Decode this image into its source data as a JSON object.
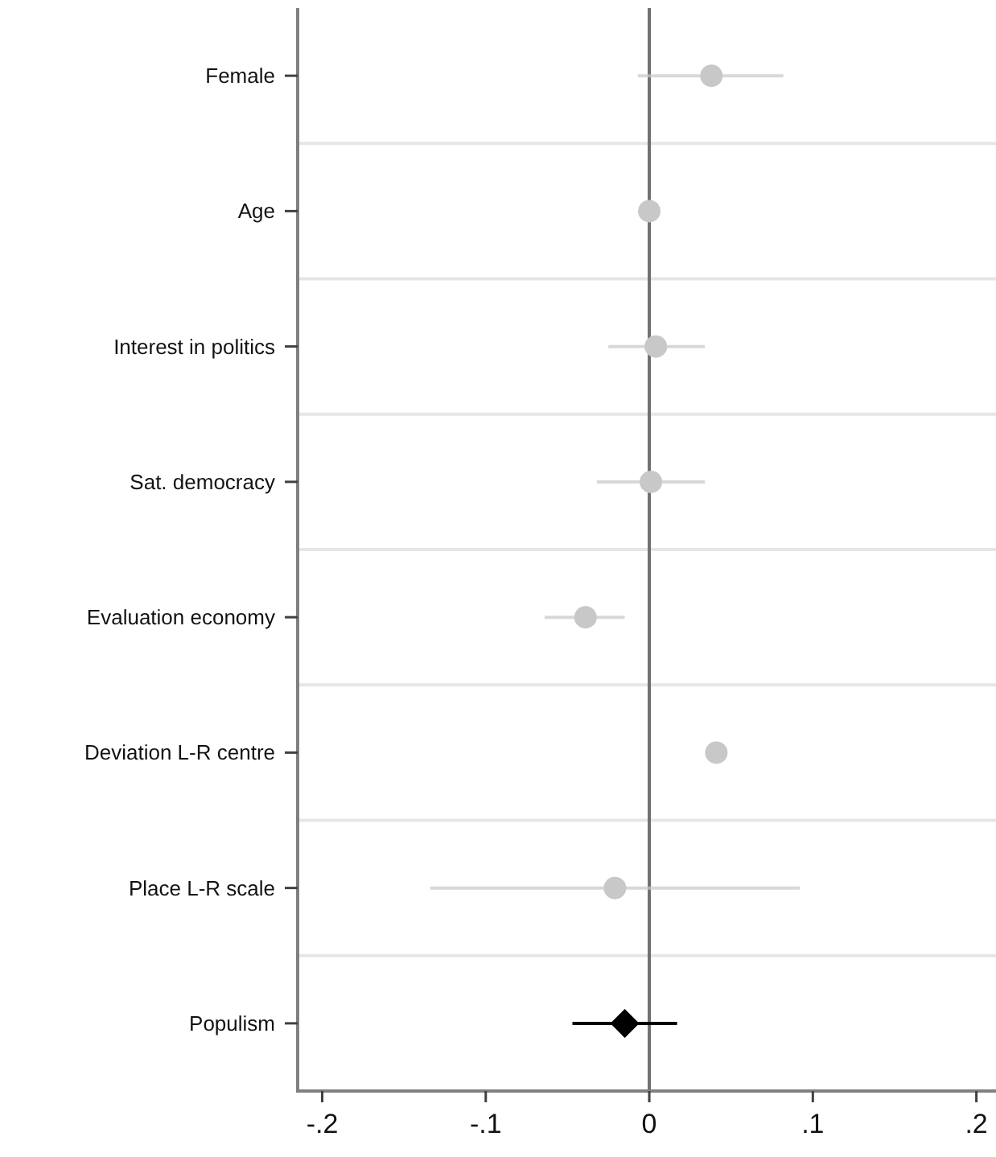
{
  "chart_data": {
    "type": "scatter",
    "orientation": "horizontal",
    "categories": [
      "Female",
      "Age",
      "Interest in politics",
      "Sat. democracy",
      "Evaluation economy",
      "Deviation L-R centre",
      "Place L-R scale",
      "Populism"
    ],
    "series": [
      {
        "color": "#c8c8c8",
        "marker": "circle",
        "values": [
          0.038,
          0.0,
          0.004,
          0.001,
          -0.039,
          0.041,
          -0.021,
          null
        ],
        "errors": [
          [
            -0.007,
            0.082
          ],
          null,
          [
            -0.025,
            0.034
          ],
          [
            -0.032,
            0.034
          ],
          [
            -0.064,
            -0.015
          ],
          null,
          [
            -0.134,
            0.092
          ],
          null
        ]
      },
      {
        "color": "#000000",
        "marker": "diamond",
        "values": [
          null,
          null,
          null,
          null,
          null,
          null,
          null,
          -0.015
        ],
        "errors": [
          null,
          null,
          null,
          null,
          null,
          null,
          null,
          [
            -0.047,
            0.017
          ]
        ]
      }
    ],
    "xlim": [
      -0.215,
      0.212
    ],
    "xticks": [
      {
        "value": -0.2,
        "label": "-.2"
      },
      {
        "value": -0.1,
        "label": "-.1"
      },
      0,
      {
        "value": 0.1,
        "label": ".1"
      },
      {
        "value": 0.2,
        "label": ".2"
      }
    ],
    "grid": "y",
    "ref_lines": [
      {
        "axis": "x",
        "value": 0,
        "color": "#707070"
      }
    ]
  }
}
